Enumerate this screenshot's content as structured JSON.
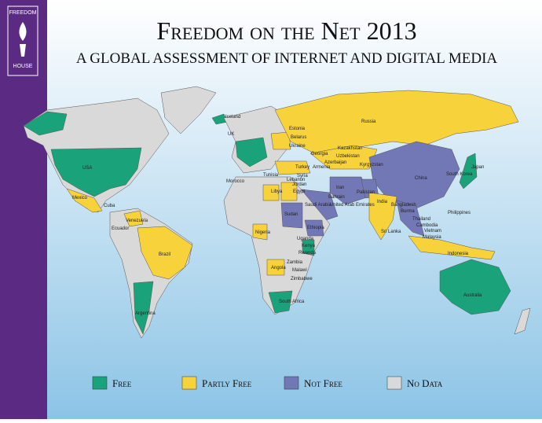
{
  "logo": {
    "top": "FREEDOM",
    "bottom": "HOUSE"
  },
  "header": {
    "title": "Freedom on the Net 2013",
    "subtitle": "A Global Assessment of Internet and Digital Media"
  },
  "legend": [
    "Free",
    "Partly Free",
    "Not Free",
    "No Data"
  ],
  "labels": [
    "Iceland",
    "UK",
    "Estonia",
    "Belarus",
    "Ukraine",
    "Russia",
    "Georgia",
    "Armenia",
    "Azerbaijan",
    "Kazakhstan",
    "Uzbekistan",
    "Kyrgyzstan",
    "Turkey",
    "Syria",
    "Lebanon",
    "Jordan",
    "Iran",
    "Bahrain",
    "Saudi Arabia",
    "United Arab Emirates",
    "Pakistan",
    "China",
    "South Korea",
    "Japan",
    "India",
    "Bangladesh",
    "Burma",
    "Thailand",
    "Cambodia",
    "Vietnam",
    "Philippines",
    "Malaysia",
    "Sri Lanka",
    "Indonesia",
    "Australia",
    "Morocco",
    "Tunisia",
    "Libya",
    "Egypt",
    "Nigeria",
    "Sudan",
    "Ethiopia",
    "Uganda",
    "Kenya",
    "Rwanda",
    "Angola",
    "Malawi",
    "Zambia",
    "Zimbabwe",
    "South Africa",
    "USA",
    "Mexico",
    "Cuba",
    "Venezuela",
    "Ecuador",
    "Brazil",
    "Argentina"
  ]
}
